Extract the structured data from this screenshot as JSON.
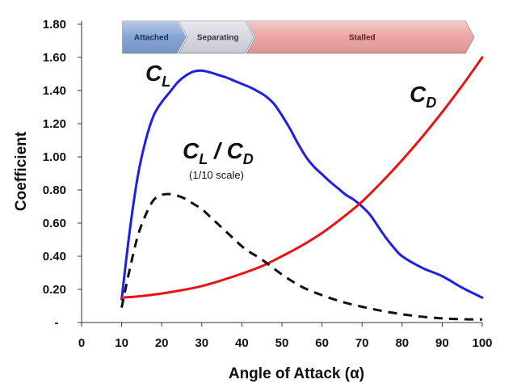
{
  "chart_data": {
    "type": "line",
    "xlabel": "Angle of Attack (α)",
    "ylabel": "Coefficient",
    "xlim": [
      0,
      100
    ],
    "ylim": [
      0,
      1.8
    ],
    "x_ticks": [
      "0",
      "10",
      "20",
      "30",
      "40",
      "50",
      "60",
      "70",
      "80",
      "90",
      "100"
    ],
    "y_ticks": [
      "-",
      "0.20",
      "0.40",
      "0.60",
      "0.80",
      "1.00",
      "1.20",
      "1.40",
      "1.60",
      "1.80"
    ],
    "grid": false,
    "series": [
      {
        "name": "CL",
        "label_main": "C",
        "label_sub": "L",
        "color": "#1f1fe6",
        "style": "solid",
        "x": [
          10,
          12,
          14,
          16,
          18,
          20,
          22,
          24,
          26,
          28,
          30,
          32,
          34,
          36,
          38,
          40,
          42,
          44,
          46,
          48,
          50,
          52,
          54,
          56,
          58,
          60,
          62,
          64,
          66,
          68,
          70,
          72,
          74,
          76,
          78,
          80,
          85,
          90,
          95,
          100
        ],
        "y": [
          0.14,
          0.55,
          0.88,
          1.1,
          1.25,
          1.33,
          1.39,
          1.45,
          1.49,
          1.515,
          1.52,
          1.51,
          1.495,
          1.48,
          1.46,
          1.44,
          1.42,
          1.395,
          1.365,
          1.32,
          1.25,
          1.17,
          1.08,
          1.0,
          0.94,
          0.895,
          0.85,
          0.81,
          0.77,
          0.74,
          0.7,
          0.65,
          0.58,
          0.51,
          0.45,
          0.4,
          0.33,
          0.28,
          0.21,
          0.15
        ]
      },
      {
        "name": "CD",
        "label_main": "C",
        "label_sub": "D",
        "color": "#e81414",
        "style": "solid",
        "x": [
          10,
          15,
          20,
          25,
          30,
          35,
          40,
          45,
          50,
          55,
          60,
          65,
          70,
          75,
          80,
          85,
          90,
          95,
          100
        ],
        "y": [
          0.15,
          0.16,
          0.175,
          0.195,
          0.22,
          0.255,
          0.295,
          0.34,
          0.4,
          0.465,
          0.54,
          0.63,
          0.73,
          0.85,
          0.98,
          1.12,
          1.27,
          1.43,
          1.6
        ]
      },
      {
        "name": "CL/CD",
        "label_main": "C",
        "label_sub": "L",
        "label_mid": " / C",
        "label_sub2": "D",
        "note": "(1/10 scale)",
        "color": "#111111",
        "style": "dashed",
        "x": [
          10,
          12,
          14,
          16,
          18,
          20,
          22,
          24,
          26,
          28,
          30,
          32,
          34,
          36,
          38,
          40,
          42,
          45,
          50,
          55,
          60,
          65,
          70,
          75,
          80,
          85,
          90,
          95,
          100
        ],
        "y": [
          0.09,
          0.32,
          0.52,
          0.65,
          0.74,
          0.77,
          0.775,
          0.765,
          0.745,
          0.715,
          0.685,
          0.64,
          0.595,
          0.55,
          0.505,
          0.46,
          0.425,
          0.38,
          0.29,
          0.215,
          0.165,
          0.125,
          0.095,
          0.07,
          0.05,
          0.035,
          0.025,
          0.02,
          0.018
        ]
      }
    ],
    "phases": [
      {
        "label": "Attached",
        "x_start": 10,
        "x_end": 24,
        "fill": "#7e9fd2",
        "text_color": "#1f2f55"
      },
      {
        "label": "Separating",
        "x_start": 24,
        "x_end": 41,
        "fill": "#d5d5df",
        "text_color": "#333344"
      },
      {
        "label": "Stalled",
        "x_start": 41,
        "x_end": 96,
        "fill": "#ec9f9f",
        "text_color": "#5a1f1f"
      }
    ]
  }
}
